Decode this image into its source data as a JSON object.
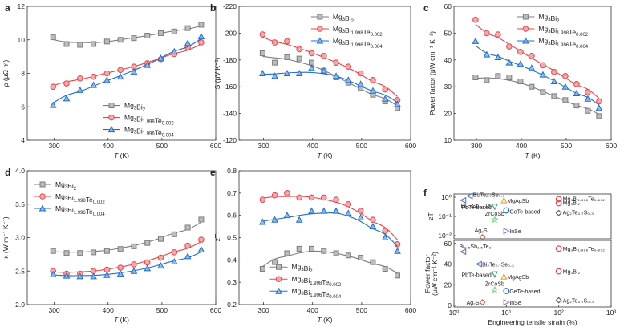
{
  "colors": {
    "gray": "#7d7d7d",
    "red": "#e8454a",
    "blue": "#1f6fc9",
    "fit": "#555555"
  },
  "chart_data": [
    {
      "panel": "a",
      "type": "line",
      "xlabel": "T (K)",
      "ylabel": "ρ (μΩ m)",
      "xlim": [
        250,
        600
      ],
      "ylim": [
        4,
        12
      ],
      "xticks": [
        300,
        400,
        500,
        600
      ],
      "yticks": [
        4,
        6,
        8,
        10,
        12
      ],
      "legend_pos": "bottom-right",
      "series": [
        {
          "name": "Mg3Bi2",
          "label_main": "Mg",
          "label_parts": [
            [
              "Mg",
              ""
            ],
            [
              "3",
              "sub"
            ],
            [
              "Bi",
              ""
            ],
            [
              "2",
              "sub"
            ]
          ],
          "color": "gray",
          "marker": "square",
          "x": [
            298,
            323,
            348,
            373,
            398,
            423,
            448,
            473,
            498,
            523,
            548,
            573
          ],
          "y": [
            10.15,
            9.75,
            9.7,
            9.75,
            9.9,
            10.0,
            10.1,
            10.25,
            10.4,
            10.5,
            10.7,
            10.9
          ]
        },
        {
          "name": "Mg3Bi1.998Te0.002",
          "label_parts": [
            [
              "Mg",
              ""
            ],
            [
              "3",
              "sub"
            ],
            [
              "Bi",
              ""
            ],
            [
              "1.998",
              "sub"
            ],
            [
              "Te",
              ""
            ],
            [
              "0.002",
              "sub"
            ]
          ],
          "color": "red",
          "marker": "circle",
          "x": [
            298,
            323,
            348,
            373,
            398,
            423,
            448,
            473,
            498,
            523,
            548,
            573
          ],
          "y": [
            7.2,
            7.4,
            7.7,
            7.8,
            8.0,
            8.2,
            8.4,
            8.6,
            8.85,
            9.15,
            9.55,
            9.85
          ]
        },
        {
          "name": "Mg3Bi1.996Te0.004",
          "label_parts": [
            [
              "Mg",
              ""
            ],
            [
              "3",
              "sub"
            ],
            [
              "Bi",
              ""
            ],
            [
              "1.996",
              "sub"
            ],
            [
              "Te",
              ""
            ],
            [
              "0.004",
              "sub"
            ]
          ],
          "color": "blue",
          "marker": "triangle",
          "x": [
            298,
            323,
            348,
            373,
            398,
            423,
            448,
            473,
            498,
            523,
            548,
            573
          ],
          "y": [
            6.1,
            6.5,
            7.0,
            7.3,
            7.6,
            7.8,
            8.1,
            8.5,
            8.9,
            9.3,
            9.8,
            10.2
          ]
        }
      ]
    },
    {
      "panel": "b",
      "type": "line",
      "xlabel": "T (K)",
      "ylabel": "S (μV K⁻¹)",
      "xlim": [
        250,
        600
      ],
      "ylim": [
        -120,
        -220
      ],
      "xticks": [
        300,
        400,
        500,
        600
      ],
      "yticks": [
        -120,
        -140,
        -160,
        -180,
        -200,
        -220
      ],
      "legend_pos": "top-right",
      "series": [
        {
          "name": "Mg3Bi2",
          "color": "gray",
          "marker": "square",
          "x": [
            298,
            323,
            348,
            373,
            398,
            423,
            448,
            473,
            498,
            523,
            548,
            573
          ],
          "y": [
            -185,
            -178,
            -182,
            -181,
            -178,
            -172,
            -167,
            -163,
            -159,
            -154,
            -149,
            -144
          ]
        },
        {
          "name": "Mg3Bi1.998Te0.002",
          "color": "red",
          "marker": "circle",
          "x": [
            298,
            323,
            348,
            373,
            398,
            423,
            448,
            473,
            498,
            523,
            548,
            573
          ],
          "y": [
            -199,
            -193,
            -194,
            -188,
            -185,
            -183,
            -178,
            -175,
            -170,
            -165,
            -158,
            -150
          ]
        },
        {
          "name": "Mg3Bi1.996Te0.004",
          "color": "blue",
          "marker": "triangle",
          "x": [
            298,
            323,
            348,
            373,
            398,
            423,
            448,
            473,
            498,
            523,
            548,
            573
          ],
          "y": [
            -170,
            -168,
            -170,
            -170,
            -174,
            -172,
            -168,
            -165,
            -162,
            -157,
            -151,
            -147
          ]
        }
      ]
    },
    {
      "panel": "c",
      "type": "line",
      "xlabel": "T (K)",
      "ylabel": "Power factor (μW cm⁻¹ K⁻²)",
      "xlim": [
        250,
        600
      ],
      "ylim": [
        10,
        60
      ],
      "xticks": [
        300,
        400,
        500,
        600
      ],
      "yticks": [
        10,
        20,
        30,
        40,
        50,
        60
      ],
      "legend_pos": "top-right",
      "series": [
        {
          "name": "Mg3Bi2",
          "color": "gray",
          "marker": "square",
          "x": [
            298,
            323,
            348,
            373,
            398,
            423,
            448,
            473,
            498,
            523,
            548,
            573
          ],
          "y": [
            33.5,
            32.5,
            34,
            33.5,
            32,
            30,
            28,
            26.5,
            25,
            23,
            21,
            19
          ]
        },
        {
          "name": "Mg3Bi1.998Te0.002",
          "color": "red",
          "marker": "circle",
          "x": [
            298,
            323,
            348,
            373,
            398,
            423,
            448,
            473,
            498,
            523,
            548,
            573
          ],
          "y": [
            55,
            50,
            49.5,
            45,
            43,
            41.5,
            38,
            35.5,
            34,
            31,
            28,
            24.5
          ]
        },
        {
          "name": "Mg3Bi1.996Te0.004",
          "color": "blue",
          "marker": "triangle",
          "x": [
            298,
            323,
            348,
            373,
            398,
            423,
            448,
            473,
            498,
            523,
            548,
            573
          ],
          "y": [
            47,
            42,
            41,
            39,
            38.5,
            37,
            34.5,
            32,
            30,
            27.5,
            25.5,
            22
          ]
        }
      ]
    },
    {
      "panel": "d",
      "type": "line",
      "xlabel": "T (K)",
      "ylabel": "κ (W m⁻¹ K⁻¹)",
      "xlim": [
        250,
        600
      ],
      "ylim": [
        2.0,
        4.0
      ],
      "xticks": [
        300,
        400,
        500,
        600
      ],
      "yticks": [
        2.0,
        2.5,
        3.0,
        3.5,
        4.0
      ],
      "legend_pos": "top-left",
      "series": [
        {
          "name": "Mg3Bi2",
          "color": "gray",
          "marker": "square",
          "x": [
            298,
            323,
            348,
            373,
            398,
            423,
            448,
            473,
            498,
            523,
            548,
            573
          ],
          "y": [
            2.8,
            2.77,
            2.77,
            2.78,
            2.8,
            2.83,
            2.87,
            2.92,
            2.98,
            3.05,
            3.15,
            3.27
          ]
        },
        {
          "name": "Mg3Bi1.998Te0.002",
          "color": "red",
          "marker": "circle",
          "x": [
            298,
            323,
            348,
            373,
            398,
            423,
            448,
            473,
            498,
            523,
            548,
            573
          ],
          "y": [
            2.5,
            2.46,
            2.46,
            2.5,
            2.52,
            2.55,
            2.6,
            2.63,
            2.7,
            2.78,
            2.88,
            2.97
          ]
        },
        {
          "name": "Mg3Bi1.996Te0.004",
          "color": "blue",
          "marker": "triangle",
          "x": [
            298,
            323,
            348,
            373,
            398,
            423,
            448,
            473,
            498,
            523,
            548,
            573
          ],
          "y": [
            2.45,
            2.43,
            2.42,
            2.42,
            2.44,
            2.46,
            2.5,
            2.54,
            2.58,
            2.64,
            2.72,
            2.82
          ]
        }
      ]
    },
    {
      "panel": "e",
      "type": "line",
      "xlabel": "T (K)",
      "ylabel": "zT",
      "xlim": [
        250,
        600
      ],
      "ylim": [
        0.2,
        0.8
      ],
      "xticks": [
        300,
        400,
        500,
        600
      ],
      "yticks": [
        0.2,
        0.3,
        0.4,
        0.5,
        0.6,
        0.7,
        0.8
      ],
      "legend_pos": "bottom-right",
      "series": [
        {
          "name": "Mg3Bi2",
          "color": "gray",
          "marker": "square",
          "x": [
            298,
            323,
            348,
            373,
            398,
            423,
            448,
            473,
            498,
            523,
            548,
            573
          ],
          "y": [
            0.36,
            0.39,
            0.43,
            0.45,
            0.45,
            0.44,
            0.43,
            0.42,
            0.41,
            0.39,
            0.36,
            0.33
          ]
        },
        {
          "name": "Mg3Bi1.998Te0.002",
          "color": "red",
          "marker": "circle",
          "x": [
            298,
            323,
            348,
            373,
            398,
            423,
            448,
            473,
            498,
            523,
            548,
            573
          ],
          "y": [
            0.67,
            0.69,
            0.7,
            0.68,
            0.68,
            0.68,
            0.67,
            0.65,
            0.62,
            0.58,
            0.53,
            0.47
          ]
        },
        {
          "name": "Mg3Bi1.996Te0.004",
          "color": "blue",
          "marker": "triangle",
          "x": [
            298,
            323,
            348,
            373,
            398,
            423,
            448,
            473,
            498,
            523,
            548,
            573
          ],
          "y": [
            0.57,
            0.58,
            0.6,
            0.58,
            0.62,
            0.62,
            0.62,
            0.61,
            0.59,
            0.55,
            0.5,
            0.44
          ]
        }
      ]
    },
    {
      "panel": "f",
      "type": "scatter",
      "xlabel": "Engineering tensile strain (%)",
      "xlim_log": [
        0,
        3
      ],
      "xticks": [
        "10⁰",
        "10¹",
        "10²",
        "10³"
      ],
      "top": {
        "ylabel": "zT",
        "ylim_log": [
          -2,
          0
        ],
        "yticks": [
          "10⁰",
          "10⁻¹",
          "10⁻²"
        ],
        "points": [
          {
            "label": "Bi₂Te₂.₇Se₀.₃",
            "x": 2.0,
            "y": 1.0,
            "marker": "tri-left",
            "color": "#5a7dd0"
          },
          {
            "label": "Bi₀.₅Sb₁.₅Te₃",
            "x": 1.5,
            "y": 0.62,
            "marker": "tri-left",
            "color": "#5a7dd0"
          },
          {
            "label": "MgAgSb",
            "x": 9.0,
            "y": 0.62,
            "marker": "tri-up",
            "color": "#e6a23c"
          },
          {
            "label": "PbTe-based",
            "x": 6.0,
            "y": 0.3,
            "marker": "tri-down",
            "color": "#3aa07a"
          },
          {
            "label": "GeTe-based",
            "x": 10.0,
            "y": 0.2,
            "marker": "circle",
            "color": "#1f6fc9"
          },
          {
            "label": "ZrCoSb",
            "x": 6.0,
            "y": 0.07,
            "marker": "star",
            "color": "#7bd48a"
          },
          {
            "label": "InSe",
            "x": 10.0,
            "y": 0.02,
            "marker": "tri-right",
            "color": "#9b6fcf"
          },
          {
            "label": "Ag₂S",
            "x": 3.5,
            "y": 0.01,
            "marker": "diamond",
            "color": "#c25b57"
          },
          {
            "label": "Mg₃Bi₁.₉₉₈Te₀.₀₀₂",
            "x": 100,
            "y": 0.7,
            "marker": "circle",
            "color": "#e8454a"
          },
          {
            "label": "Mg₃Bi₂",
            "x": 100,
            "y": 0.45,
            "marker": "circle",
            "color": "#e8454a"
          },
          {
            "label": "Ag₂Te₀.₇S₀.₃",
            "x": 100,
            "y": 0.15,
            "marker": "diamond",
            "color": "#555555"
          }
        ]
      },
      "bottom": {
        "ylabel": "Power factor (μW cm⁻¹ K⁻²)",
        "ylim": [
          0,
          60
        ],
        "yticks": [
          "0",
          "20",
          "40",
          "60"
        ],
        "points": [
          {
            "label": "Bi₀.₅Sb₁.₅Te₃",
            "x": 1.5,
            "y": 52,
            "marker": "tri-left",
            "color": "#5a7dd0"
          },
          {
            "label": "Bi₂Te₂.₇Se₀.₃",
            "x": 3.0,
            "y": 40,
            "marker": "tri-left",
            "color": "#5a7dd0"
          },
          {
            "label": "PbTe-based",
            "x": 6.0,
            "y": 30,
            "marker": "tri-down",
            "color": "#3aa07a"
          },
          {
            "label": "MgAgSb",
            "x": 9.0,
            "y": 28,
            "marker": "tri-up",
            "color": "#e6a23c"
          },
          {
            "label": "ZrCoSb",
            "x": 6.0,
            "y": 15,
            "marker": "star",
            "color": "#7bd48a"
          },
          {
            "label": "GeTe-based",
            "x": 10.0,
            "y": 14,
            "marker": "circle",
            "color": "#1f6fc9"
          },
          {
            "label": "Ag₂S",
            "x": 3.5,
            "y": 3,
            "marker": "diamond",
            "color": "#c25b57"
          },
          {
            "label": "InSe",
            "x": 10.0,
            "y": 3,
            "marker": "tri-right",
            "color": "#9b6fcf"
          },
          {
            "label": "Mg₃Bi₁.₉₉₈Te₀.₀₀₂",
            "x": 100,
            "y": 55,
            "marker": "circle",
            "color": "#e8454a"
          },
          {
            "label": "Mg₃Bi₂",
            "x": 100,
            "y": 33,
            "marker": "circle",
            "color": "#e8454a"
          },
          {
            "label": "Ag₂Te₀.₇S₀.₃",
            "x": 100,
            "y": 5,
            "marker": "diamond",
            "color": "#555555"
          }
        ]
      }
    }
  ]
}
